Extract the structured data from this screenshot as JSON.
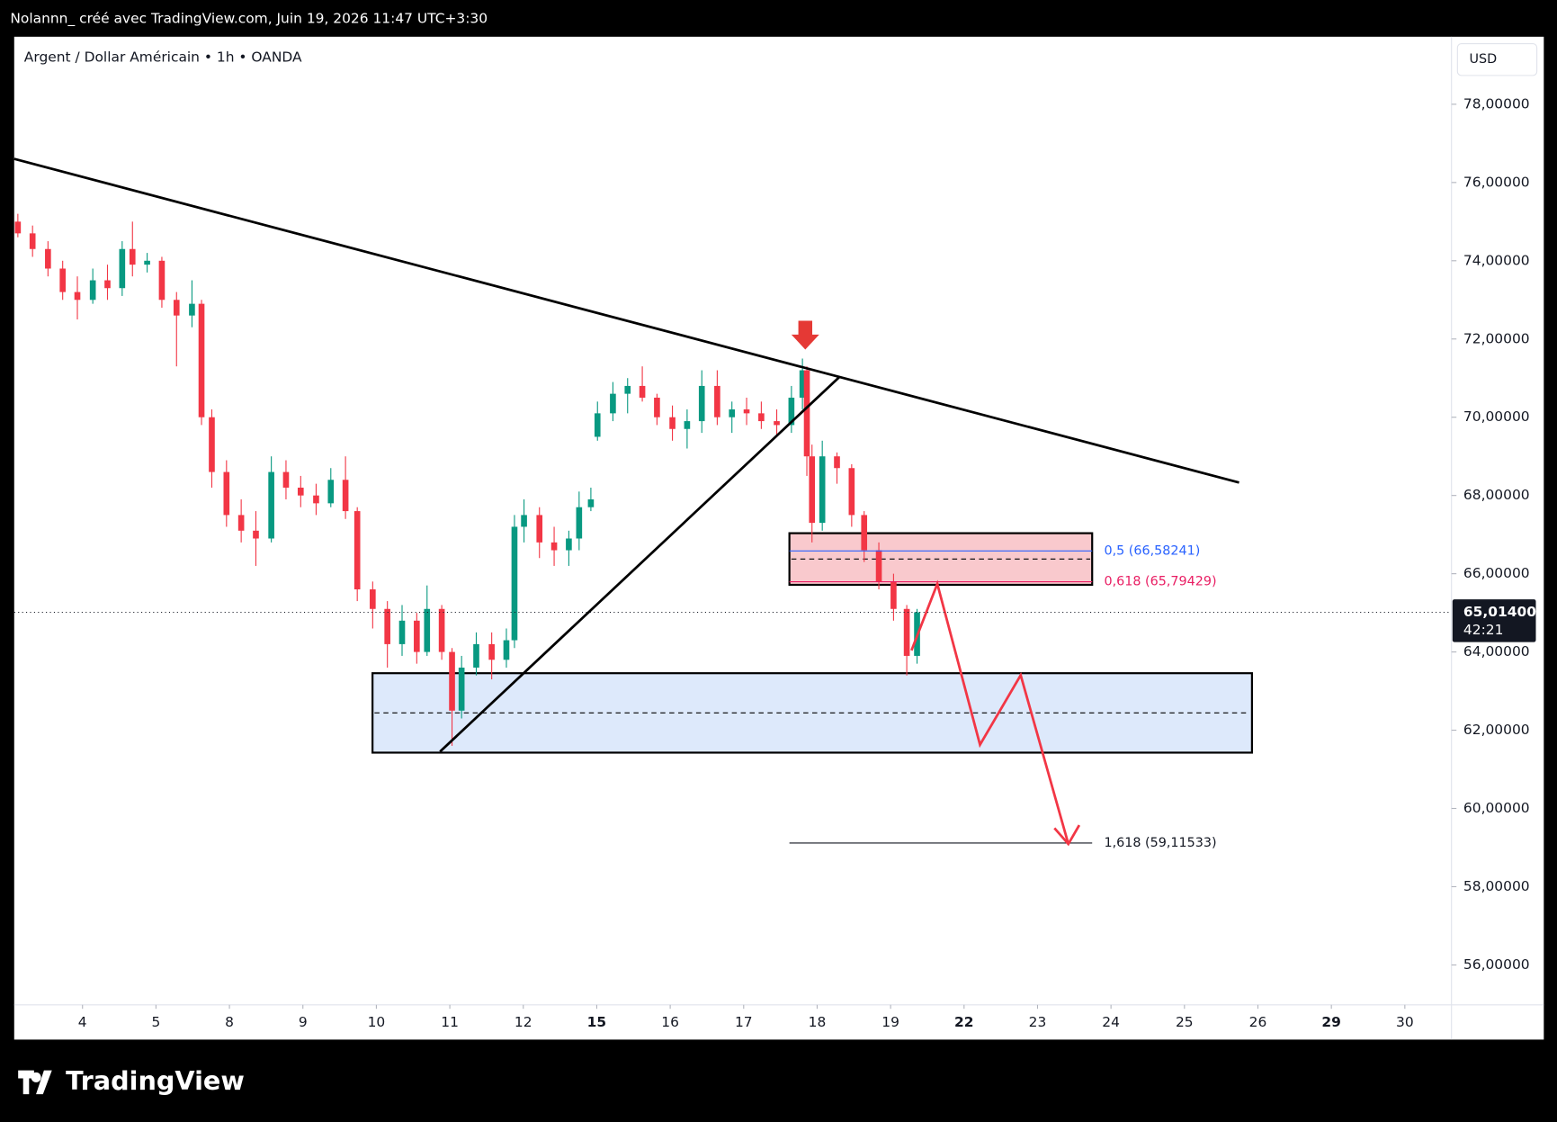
{
  "header_text": "Nolannn_ créé avec TradingView.com, Juin 19, 2026 11:47 UTC+3:30",
  "brand": "TradingView",
  "chart_data": {
    "type": "candlestick",
    "title": "Argent / Dollar Américain • 1h • OANDA",
    "currency": "USD",
    "up_color": "#089981",
    "down_color": "#f23645",
    "xlim": [
      -0.93,
      18.635
    ],
    "ylim": [
      54.98,
      79.726
    ],
    "xticks": [
      {
        "value": 0,
        "label": "4"
      },
      {
        "value": 1,
        "label": "5"
      },
      {
        "value": 2,
        "label": "8"
      },
      {
        "value": 3,
        "label": "9"
      },
      {
        "value": 4,
        "label": "10"
      },
      {
        "value": 5,
        "label": "11"
      },
      {
        "value": 6,
        "label": "12"
      },
      {
        "value": 7,
        "label": "15",
        "bold": true
      },
      {
        "value": 8,
        "label": "16"
      },
      {
        "value": 9,
        "label": "17"
      },
      {
        "value": 10,
        "label": "18"
      },
      {
        "value": 11,
        "label": "19"
      },
      {
        "value": 12,
        "label": "22",
        "bold": true
      },
      {
        "value": 13,
        "label": "23"
      },
      {
        "value": 14,
        "label": "24"
      },
      {
        "value": 15,
        "label": "25"
      },
      {
        "value": 16,
        "label": "26"
      },
      {
        "value": 17,
        "label": "29",
        "bold": true
      },
      {
        "value": 18,
        "label": "30"
      }
    ],
    "yticks": [
      {
        "value": 78,
        "label": "78,00000"
      },
      {
        "value": 76,
        "label": "76,00000"
      },
      {
        "value": 74,
        "label": "74,00000"
      },
      {
        "value": 72,
        "label": "72,00000"
      },
      {
        "value": 70,
        "label": "70,00000"
      },
      {
        "value": 68,
        "label": "68,00000"
      },
      {
        "value": 66,
        "label": "66,00000"
      },
      {
        "value": 64,
        "label": "64,00000"
      },
      {
        "value": 62,
        "label": "62,00000"
      },
      {
        "value": 60,
        "label": "60,00000"
      },
      {
        "value": 58,
        "label": "58,00000"
      },
      {
        "value": 56,
        "label": "56,00000"
      }
    ],
    "last_price": {
      "value": 65.014,
      "label": "65,01400"
    },
    "countdown": "42:21",
    "x": [
      -0.88,
      -0.68,
      -0.47,
      -0.27,
      -0.07,
      0.14,
      0.34,
      0.54,
      0.68,
      0.88,
      1.08,
      1.28,
      1.49,
      1.62,
      1.76,
      1.96,
      2.16,
      2.36,
      2.57,
      2.77,
      2.97,
      3.18,
      3.38,
      3.58,
      3.74,
      3.95,
      4.15,
      4.35,
      4.55,
      4.69,
      4.89,
      5.03,
      5.16,
      5.36,
      5.57,
      5.77,
      5.88,
      6.01,
      6.22,
      6.42,
      6.62,
      6.76,
      6.92,
      7.01,
      7.22,
      7.42,
      7.62,
      7.82,
      8.03,
      8.23,
      8.43,
      8.64,
      8.84,
      9.04,
      9.24,
      9.45,
      9.65,
      9.8,
      9.86,
      9.93,
      10.07,
      10.27,
      10.47,
      10.64,
      10.84,
      11.04,
      11.22,
      11.36
    ],
    "open": [
      75.0,
      74.7,
      74.3,
      73.8,
      73.2,
      73.0,
      73.5,
      73.3,
      74.3,
      73.9,
      74.0,
      73.0,
      72.6,
      72.9,
      70.0,
      68.6,
      67.5,
      67.1,
      66.9,
      68.6,
      68.2,
      68.0,
      67.8,
      68.4,
      67.6,
      65.6,
      65.1,
      64.2,
      64.8,
      64.0,
      65.1,
      64.0,
      62.5,
      63.6,
      64.2,
      63.8,
      64.3,
      67.2,
      67.5,
      66.8,
      66.6,
      66.9,
      67.7,
      69.5,
      70.1,
      70.6,
      70.8,
      70.5,
      70.0,
      69.7,
      69.9,
      70.8,
      70.0,
      70.2,
      70.1,
      69.9,
      69.8,
      70.5,
      71.2,
      69.0,
      67.3,
      69.0,
      68.7,
      67.5,
      66.6,
      65.8,
      65.1,
      63.9
    ],
    "high": [
      75.2,
      74.9,
      74.5,
      74.0,
      73.6,
      73.8,
      73.9,
      74.5,
      75.0,
      74.2,
      74.1,
      73.2,
      73.5,
      73.0,
      70.2,
      68.9,
      67.9,
      67.6,
      69.0,
      68.9,
      68.5,
      68.3,
      68.7,
      69.0,
      67.7,
      65.8,
      65.3,
      65.2,
      65.0,
      65.7,
      65.2,
      64.1,
      63.9,
      64.5,
      64.5,
      64.6,
      67.5,
      67.9,
      67.7,
      67.2,
      67.1,
      68.1,
      68.2,
      70.4,
      70.9,
      71.0,
      71.3,
      70.6,
      70.3,
      70.2,
      71.2,
      71.2,
      70.4,
      70.5,
      70.4,
      70.2,
      70.8,
      71.5,
      71.3,
      69.3,
      69.4,
      69.1,
      68.8,
      67.6,
      66.8,
      66.0,
      65.2,
      65.1
    ],
    "low": [
      74.6,
      74.1,
      73.6,
      73.0,
      72.5,
      72.9,
      73.0,
      73.1,
      73.6,
      73.7,
      72.8,
      71.3,
      72.3,
      69.8,
      68.2,
      67.2,
      66.8,
      66.2,
      66.8,
      67.9,
      67.7,
      67.5,
      67.7,
      67.4,
      65.3,
      64.6,
      63.6,
      63.9,
      63.7,
      63.9,
      63.8,
      61.6,
      62.3,
      63.4,
      63.3,
      63.6,
      64.1,
      66.8,
      66.4,
      66.2,
      66.2,
      66.6,
      67.6,
      69.4,
      69.9,
      70.1,
      70.4,
      69.8,
      69.4,
      69.2,
      69.6,
      69.8,
      69.6,
      69.8,
      69.7,
      69.5,
      69.6,
      70.2,
      68.5,
      66.8,
      67.1,
      68.3,
      67.2,
      66.3,
      65.6,
      64.8,
      63.4,
      63.7
    ],
    "close": [
      74.7,
      74.3,
      73.8,
      73.2,
      73.0,
      73.5,
      73.3,
      74.3,
      73.9,
      74.0,
      73.0,
      72.6,
      72.9,
      70.0,
      68.6,
      67.5,
      67.1,
      66.9,
      68.6,
      68.2,
      68.0,
      67.8,
      68.4,
      67.6,
      65.6,
      65.1,
      64.2,
      64.8,
      64.0,
      65.1,
      64.0,
      62.5,
      63.6,
      64.2,
      63.8,
      64.3,
      67.2,
      67.5,
      66.8,
      66.6,
      66.9,
      67.7,
      67.9,
      70.1,
      70.6,
      70.8,
      70.5,
      70.0,
      69.7,
      69.9,
      70.8,
      70.0,
      70.2,
      70.1,
      69.9,
      69.8,
      70.5,
      71.2,
      69.0,
      67.3,
      69.0,
      68.7,
      67.5,
      66.6,
      65.8,
      65.1,
      63.9,
      65.014
    ],
    "fib_levels": [
      {
        "value": 66.58241,
        "label": "0,5 (66,58241)",
        "color": "#2962ff"
      },
      {
        "value": 65.79429,
        "label": "0,618 (65,79429)",
        "color": "#e91e63"
      },
      {
        "value": 59.11533,
        "label": "1,618 (59,11533)",
        "color": "#131722"
      }
    ]
  }
}
